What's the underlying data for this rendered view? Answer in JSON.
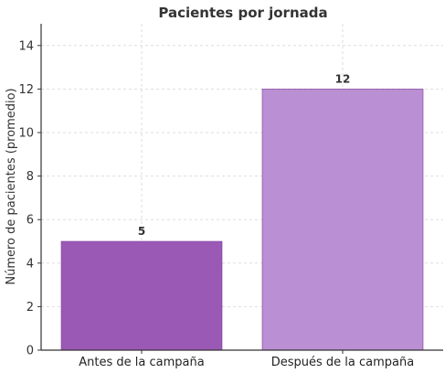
{
  "chart_data": {
    "type": "bar",
    "title": "Pacientes por jornada",
    "xlabel": "",
    "ylabel": "Número de pacientes (promedio)",
    "categories": [
      "Antes de la campaña",
      "Después de la campaña"
    ],
    "values": [
      5,
      12
    ],
    "data_labels": [
      "5",
      "12"
    ],
    "bar_colors": [
      "#9b59b6",
      "#bb8fd3"
    ],
    "ylim": [
      0,
      15
    ],
    "yticks": [
      0,
      2,
      4,
      6,
      8,
      10,
      12,
      14
    ],
    "ytick_labels": [
      "0",
      "2",
      "4",
      "6",
      "8",
      "10",
      "12",
      "14"
    ],
    "grid": true,
    "legend": "none"
  }
}
